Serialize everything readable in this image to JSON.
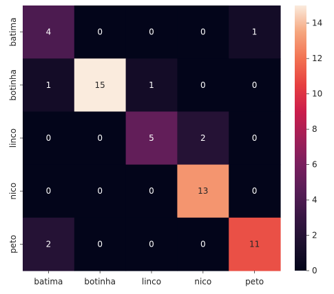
{
  "chart_data": {
    "type": "heatmap",
    "title": "",
    "xlabel": "",
    "ylabel": "",
    "x_categories": [
      "batima",
      "botinha",
      "linco",
      "nico",
      "peto"
    ],
    "y_categories": [
      "batima",
      "botinha",
      "linco",
      "nico",
      "peto"
    ],
    "values": [
      [
        4,
        0,
        0,
        0,
        1
      ],
      [
        1,
        15,
        1,
        0,
        0
      ],
      [
        0,
        0,
        5,
        2,
        0
      ],
      [
        0,
        0,
        0,
        13,
        0
      ],
      [
        2,
        0,
        0,
        0,
        11
      ]
    ],
    "colorbar": {
      "range": [
        0,
        15
      ],
      "ticks": [
        "0",
        "2",
        "4",
        "6",
        "8",
        "10",
        "12",
        "14"
      ],
      "colormap": "rocket"
    },
    "annotations": true,
    "grid": false
  }
}
